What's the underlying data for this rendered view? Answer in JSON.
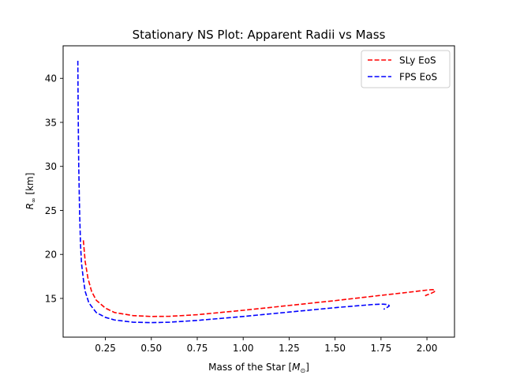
{
  "chart_data": {
    "type": "line",
    "title": "Stationary NS Plot: Apparent Radii vs Mass",
    "xlabel": "Mass of the Star [",
    "xlabel_symbol": "M",
    "xlabel_subscript": "⊙",
    "xlabel_close": "]",
    "ylabel": "R",
    "ylabel_subscript": "∞",
    "ylabel_unit": " [km]",
    "xlim": [
      0.02,
      2.15
    ],
    "ylim": [
      10.6,
      43.7
    ],
    "xticks": [
      0.25,
      0.5,
      0.75,
      1.0,
      1.25,
      1.5,
      1.75,
      2.0
    ],
    "xtick_labels": [
      "0.25",
      "0.50",
      "0.75",
      "1.00",
      "1.25",
      "1.50",
      "1.75",
      "2.00"
    ],
    "yticks": [
      15,
      20,
      25,
      30,
      35,
      40
    ],
    "ytick_labels": [
      "15",
      "20",
      "25",
      "30",
      "35",
      "40"
    ],
    "grid": false,
    "legend_position": "upper right",
    "series": [
      {
        "name": "SLy EoS",
        "color": "#ff0000",
        "line_style": "dashed",
        "x": [
          0.13,
          0.14,
          0.155,
          0.175,
          0.2,
          0.25,
          0.3,
          0.4,
          0.5,
          0.6,
          0.75,
          1.0,
          1.25,
          1.5,
          1.75,
          1.9,
          2.0,
          2.03,
          2.045,
          2.04,
          2.02,
          2.0,
          1.99
        ],
        "y": [
          21.6,
          19.2,
          17.3,
          15.8,
          14.8,
          13.9,
          13.4,
          13.05,
          12.95,
          12.97,
          13.15,
          13.65,
          14.2,
          14.75,
          15.35,
          15.7,
          15.95,
          16.0,
          15.9,
          15.75,
          15.55,
          15.4,
          15.3
        ]
      },
      {
        "name": "FPS EoS",
        "color": "#0000ff",
        "line_style": "dashed",
        "x": [
          0.1,
          0.102,
          0.105,
          0.11,
          0.115,
          0.12,
          0.13,
          0.14,
          0.16,
          0.2,
          0.25,
          0.3,
          0.4,
          0.5,
          0.6,
          0.75,
          1.0,
          1.25,
          1.5,
          1.7,
          1.76,
          1.79,
          1.795,
          1.785,
          1.77,
          1.765
        ],
        "y": [
          42.0,
          36.0,
          30.0,
          24.5,
          21.0,
          19.0,
          17.2,
          15.8,
          14.5,
          13.4,
          12.85,
          12.55,
          12.3,
          12.25,
          12.3,
          12.5,
          12.95,
          13.45,
          13.95,
          14.3,
          14.35,
          14.3,
          14.15,
          14.0,
          13.85,
          13.75
        ]
      }
    ]
  }
}
